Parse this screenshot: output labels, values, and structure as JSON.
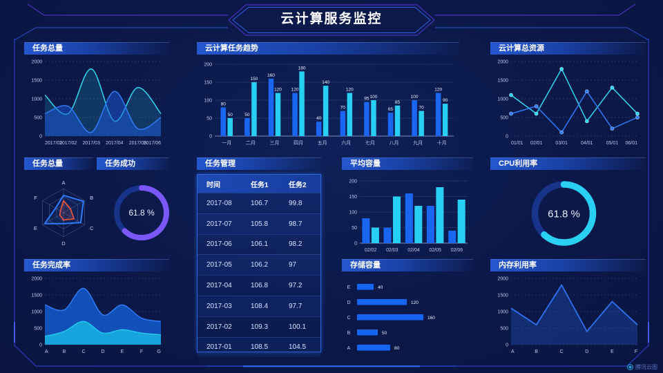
{
  "header": {
    "title": "云计算服务监控"
  },
  "footer": {
    "brand": "腾讯云图"
  },
  "colors": {
    "blue": "#1f66f0",
    "cyan": "#29d0f2",
    "purple": "#7b57f8",
    "red": "#f5583a",
    "donut_track": "#18348a",
    "panel_header": "#2457ce",
    "frame_line": "#2f52d8"
  },
  "panels": [
    {
      "title": "任务总量"
    },
    {
      "title": "云计算任务趋势"
    },
    {
      "title": "云计算总资源"
    },
    {
      "title": "任务总量"
    },
    {
      "title": "任务成功"
    },
    {
      "title": "任务管理"
    },
    {
      "title": "平均容量"
    },
    {
      "title": "CPU利用率"
    },
    {
      "title": "任务完成率"
    },
    {
      "title": "存储容量"
    },
    {
      "title": "内存利用率"
    }
  ],
  "chart_data": [
    {
      "id": "taskTotalTrend",
      "type": "area",
      "title": "任务总量",
      "x": [
        "2017/01",
        "2017/02",
        "2017/03",
        "2017/04",
        "2017/05",
        "2017/06"
      ],
      "ylim": [
        0,
        2000
      ],
      "yticks": [
        0,
        500,
        1000,
        1500,
        2000
      ],
      "grid": "dashed",
      "series": [
        {
          "color": "#2fd8f0",
          "fill": "rgba(47,216,240,0.16)",
          "values": [
            1100,
            600,
            1800,
            400,
            1300,
            600
          ]
        },
        {
          "color": "#2f7bf8",
          "fill": "rgba(27,90,220,0.50)",
          "values": [
            600,
            800,
            100,
            1200,
            200,
            500
          ]
        }
      ]
    },
    {
      "id": "cloudTaskTrend",
      "type": "bar",
      "title": "云计算任务趋势",
      "categories": [
        "一月",
        "二月",
        "三月",
        "四月",
        "五月",
        "六月",
        "七月",
        "八月",
        "九月",
        "十月"
      ],
      "ylim": [
        0,
        200
      ],
      "yticks": [
        0,
        50,
        100,
        150,
        200
      ],
      "labels": true,
      "bw": 7.5,
      "series": [
        {
          "color": "#1b66f0",
          "values": [
            80,
            50,
            160,
            120,
            40,
            70,
            95,
            65,
            100,
            120
          ]
        },
        {
          "color": "#27d0f2",
          "values": [
            50,
            150,
            120,
            180,
            140,
            120,
            100,
            85,
            70,
            90
          ]
        }
      ]
    },
    {
      "id": "cloudResourceTotal",
      "type": "line",
      "title": "云计算总资源",
      "x": [
        "01/01",
        "02/01",
        "03/01",
        "04/01",
        "05/01",
        "06/01"
      ],
      "ylim": [
        0,
        2000
      ],
      "yticks": [
        0,
        500,
        1000,
        1500,
        2000
      ],
      "grid": "dashed",
      "series": [
        {
          "color": "#2fd8f0",
          "values": [
            1100,
            600,
            1800,
            400,
            1300,
            600
          ]
        },
        {
          "color": "#2f7bf8",
          "values": [
            600,
            800,
            100,
            1200,
            200,
            500
          ]
        }
      ]
    },
    {
      "id": "taskRadar",
      "type": "radar",
      "title": "任务总量",
      "axes": [
        "A",
        "B",
        "C",
        "D",
        "E",
        "F"
      ],
      "max": 100,
      "series": [
        {
          "color": "#2f7bf8",
          "fill": "rgba(47,123,248,0.10)",
          "values": [
            72,
            95,
            82,
            45,
            90,
            38
          ]
        },
        {
          "color": "#f5583a",
          "fill": "rgba(245,88,58,0.12)",
          "values": [
            50,
            33,
            50,
            30,
            18,
            15
          ]
        }
      ]
    },
    {
      "id": "taskSuccessGauge",
      "type": "donut",
      "title": "任务成功",
      "value": 61.8,
      "unit": "%",
      "color": "#7b57f8",
      "track": "#18348a"
    },
    {
      "id": "taskTable",
      "type": "table",
      "title": "任务管理",
      "headers": [
        "时间",
        "任务1",
        "任务2"
      ],
      "rows": [
        [
          "2017-08",
          "106.7",
          "99.8"
        ],
        [
          "2017-07",
          "105.8",
          "98.7"
        ],
        [
          "2017-06",
          "106.1",
          "98.2"
        ],
        [
          "2017-05",
          "106.2",
          "97"
        ],
        [
          "2017-04",
          "106.8",
          "97.2"
        ],
        [
          "2017-03",
          "108.4",
          "97.7"
        ],
        [
          "2017-02",
          "109.3",
          "100.1"
        ],
        [
          "2017-01",
          "108.5",
          "104.5"
        ]
      ]
    },
    {
      "id": "avgCapacity",
      "type": "bar",
      "title": "平均容量",
      "categories": [
        "02/02",
        "02/03",
        "02/04",
        "02/05",
        "02/06"
      ],
      "ylim": [
        0,
        200
      ],
      "yticks": [
        0,
        50,
        100,
        150,
        200
      ],
      "labels": false,
      "bw": 11,
      "series": [
        {
          "color": "#1b66f0",
          "values": [
            80,
            50,
            160,
            120,
            40
          ]
        },
        {
          "color": "#27d0f2",
          "values": [
            50,
            150,
            120,
            180,
            140
          ]
        }
      ]
    },
    {
      "id": "cpuGauge",
      "type": "donut",
      "title": "CPU利用率",
      "value": 61.8,
      "unit": "%",
      "color": "#29d0f2",
      "track": "#18348a"
    },
    {
      "id": "taskCompletion",
      "type": "area",
      "title": "任务完成率",
      "x": [
        "A",
        "B",
        "C",
        "D",
        "E",
        "F",
        "G"
      ],
      "ylim": [
        0,
        2000
      ],
      "yticks": [
        0,
        500,
        1000,
        1500,
        2000
      ],
      "grid": "dashed",
      "series": [
        {
          "color": "#2f7bf8",
          "fill": "rgba(18,86,196,0.90)",
          "values": [
            1200,
            1050,
            1700,
            900,
            1200,
            800,
            700
          ]
        },
        {
          "color": "#24c8ee",
          "fill": "rgba(24,168,220,0.95)",
          "values": [
            250,
            400,
            700,
            350,
            450,
            350,
            300
          ]
        }
      ]
    },
    {
      "id": "storageCapacity",
      "type": "hbar",
      "title": "存储容量",
      "categories": [
        "E",
        "D",
        "C",
        "B",
        "A"
      ],
      "values": [
        40,
        120,
        160,
        50,
        80
      ],
      "xmax": 200,
      "color": "#1565f2"
    },
    {
      "id": "memoryUtilization",
      "type": "line-area",
      "title": "内存利用率",
      "x": [
        "A",
        "B",
        "C",
        "D",
        "E",
        "F"
      ],
      "ylim": [
        0,
        2000
      ],
      "yticks": [
        0,
        500,
        1000,
        1500,
        2000
      ],
      "grid": "dashed",
      "series": [
        {
          "color": "#2f72f0",
          "fill": "rgba(38,96,220,0.30)",
          "values": [
            1100,
            600,
            1800,
            400,
            1300,
            600
          ]
        }
      ]
    }
  ]
}
